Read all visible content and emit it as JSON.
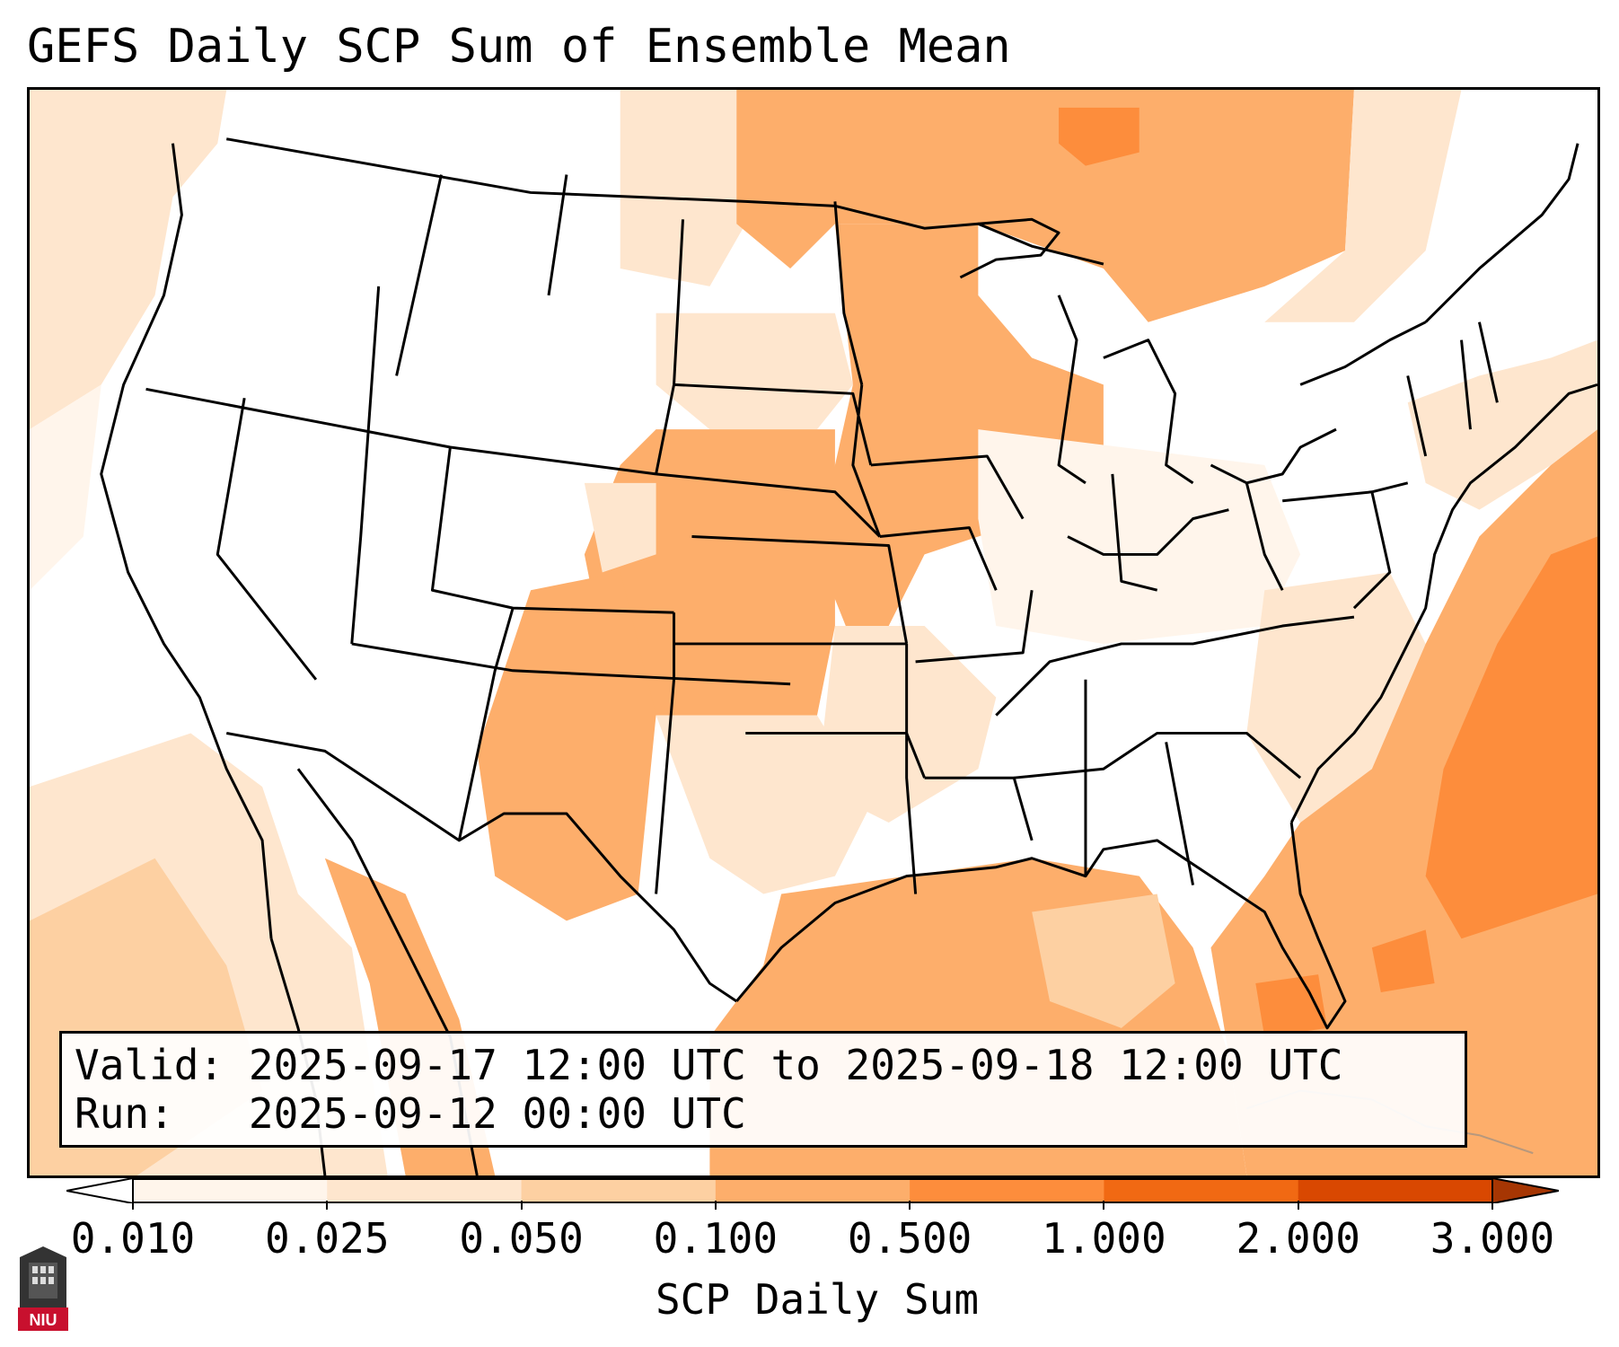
{
  "title": "GEFS Daily SCP Sum of Ensemble Mean",
  "info": {
    "valid_label": "Valid:",
    "valid_value": "2025-09-17 12:00 UTC to 2025-09-18 12:00 UTC",
    "run_label": "Run:",
    "run_value": "2025-09-12 00:00 UTC"
  },
  "colorbar": {
    "label": "SCP Daily Sum",
    "ticks": [
      "0.010",
      "0.025",
      "0.050",
      "0.100",
      "0.500",
      "1.000",
      "2.000",
      "3.000"
    ],
    "colors": [
      "#fff5eb",
      "#fee6ce",
      "#fdd0a2",
      "#fdae6b",
      "#fd8d3c",
      "#f16913",
      "#d94801"
    ],
    "under_color": "#ffffff",
    "over_color": "#a63603"
  },
  "logo": {
    "text": "NIU",
    "color": "#c8102e"
  }
}
